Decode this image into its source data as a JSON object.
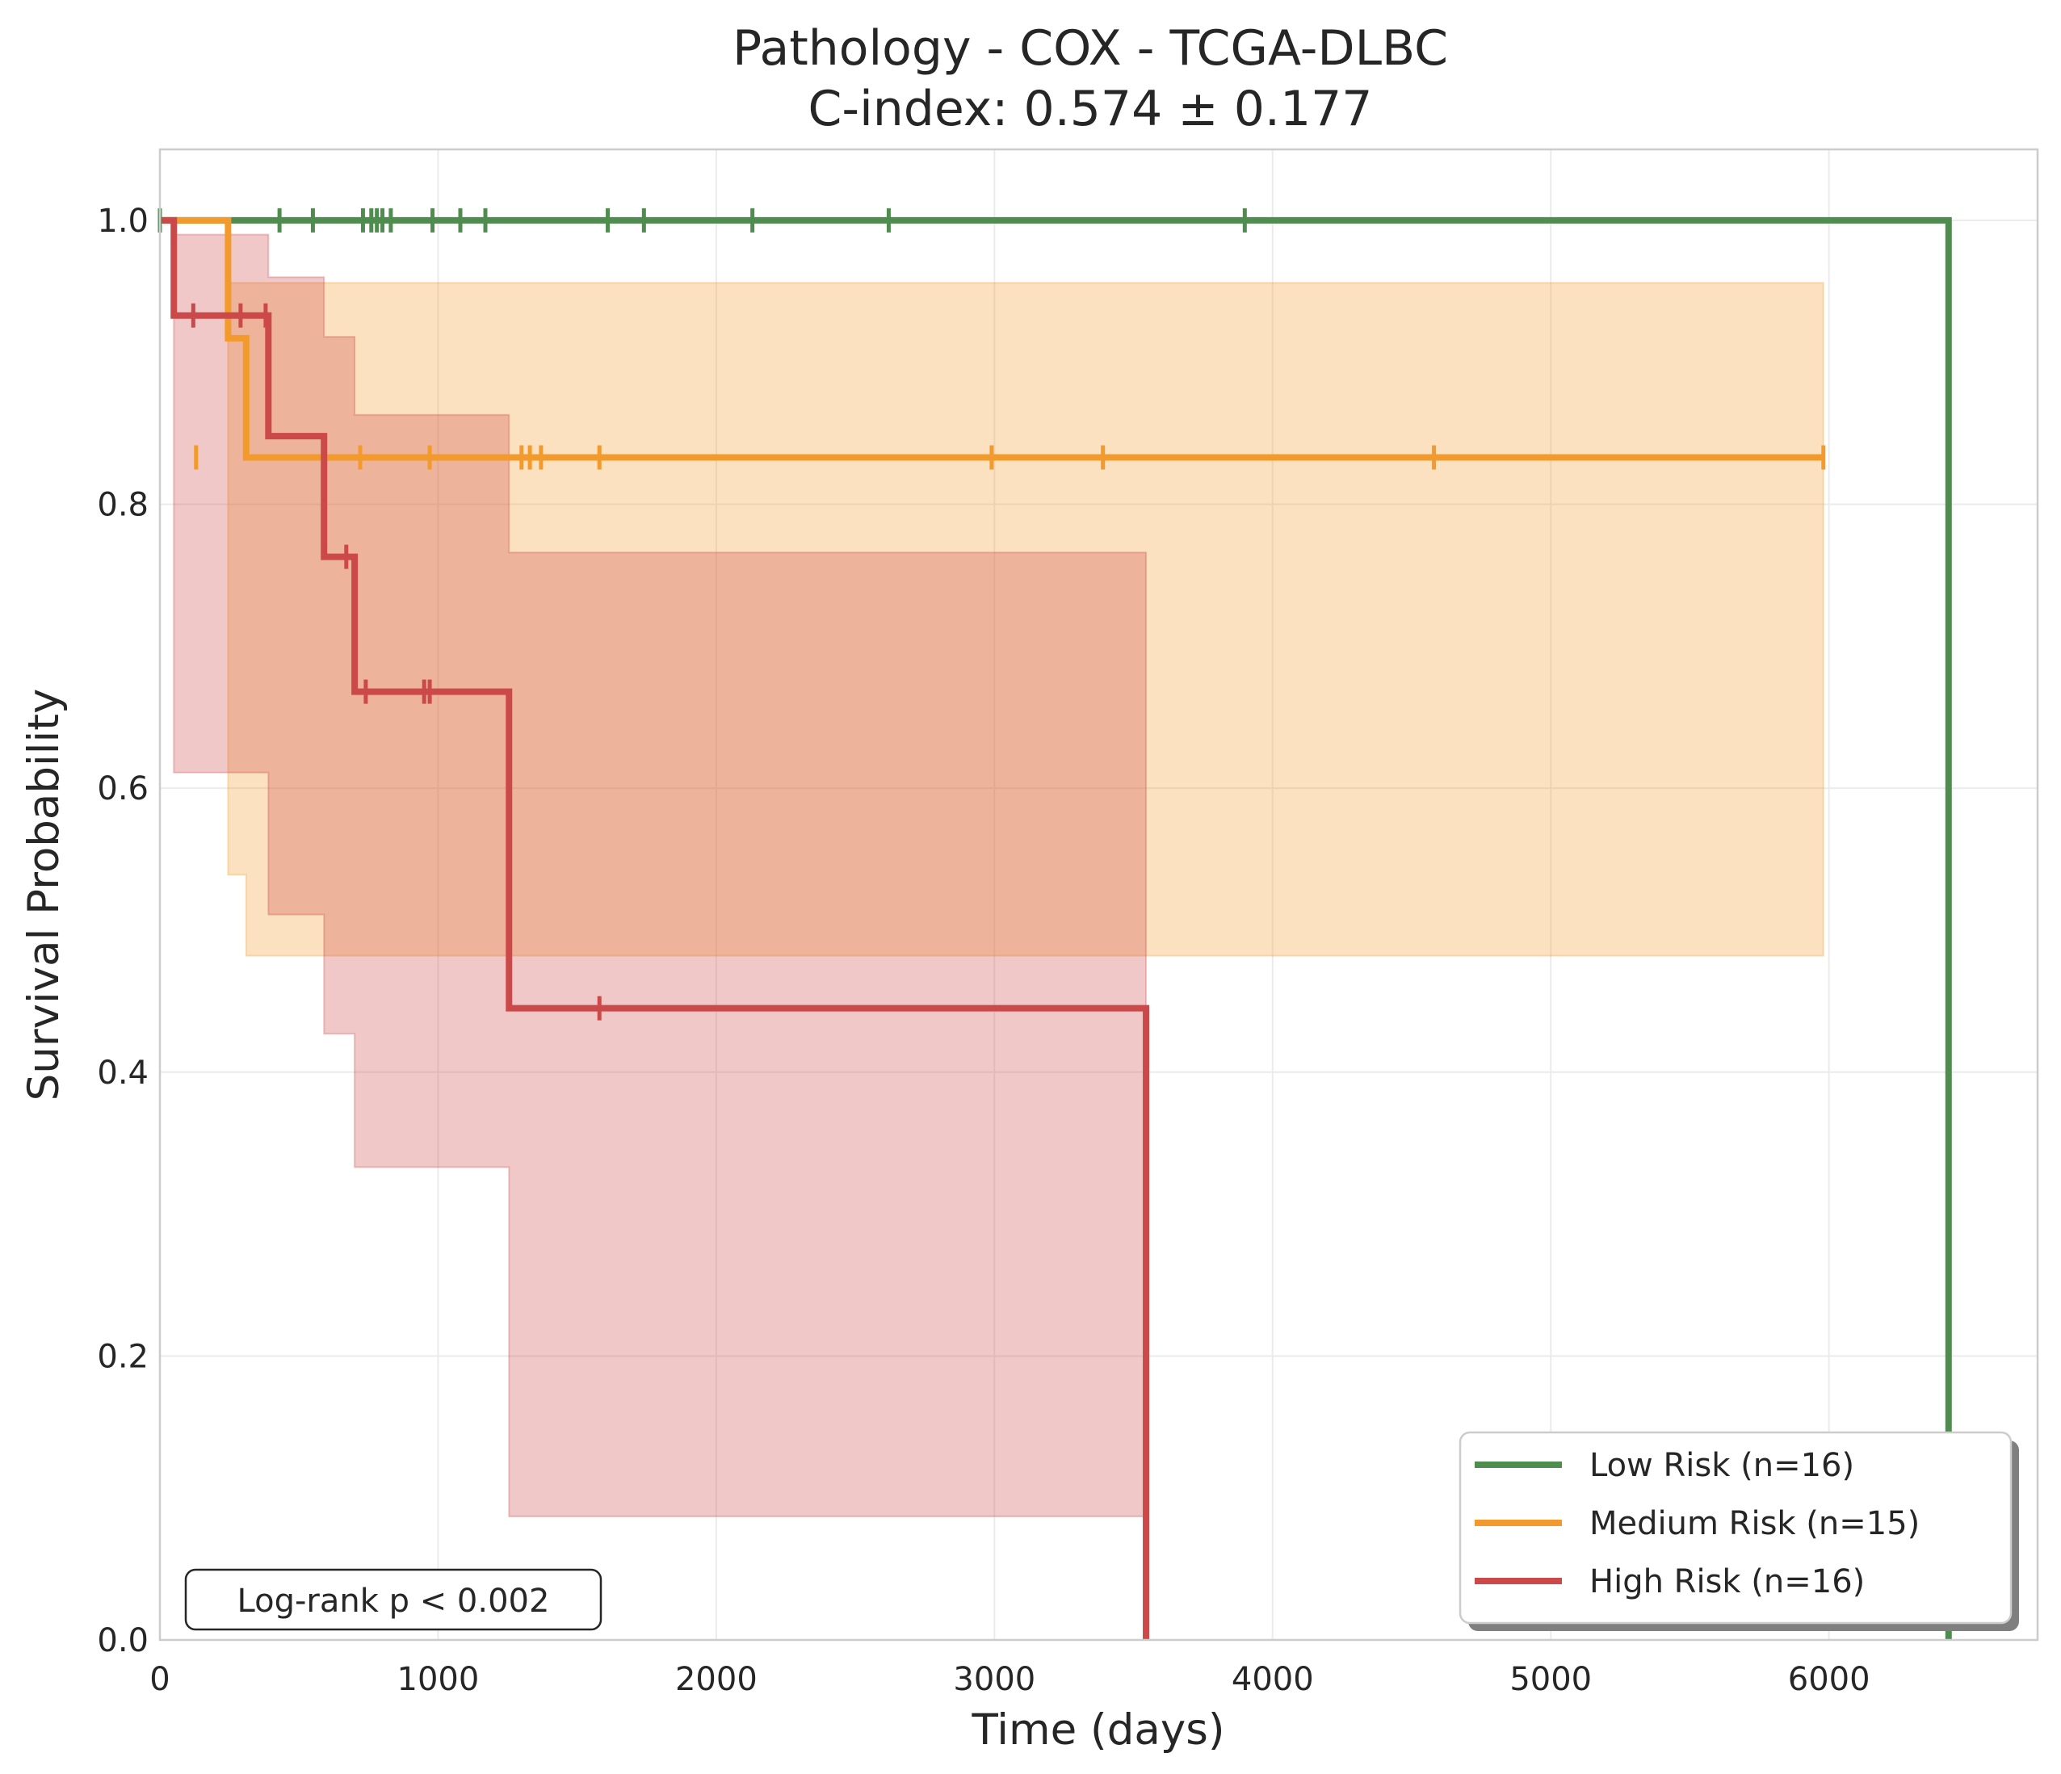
{
  "chart_data": {
    "type": "line",
    "subtype": "kaplan-meier",
    "title_line1": "Pathology - COX - TCGA-DLBC",
    "title_line2": "C-index: 0.574 ± 0.177",
    "xlabel": "Time (days)",
    "ylabel": "Survival Probability",
    "xlim": [
      0,
      6750
    ],
    "ylim": [
      0,
      1.05
    ],
    "x_ticks": [
      "0",
      "1000",
      "2000",
      "3000",
      "4000",
      "5000",
      "6000"
    ],
    "x_tick_values": [
      0,
      1000,
      2000,
      3000,
      4000,
      5000,
      6000
    ],
    "y_ticks": [
      "0.0",
      "0.2",
      "0.4",
      "0.6",
      "0.8",
      "1.0"
    ],
    "y_tick_values": [
      0,
      0.2,
      0.4,
      0.6,
      0.8,
      1.0
    ],
    "grid": true,
    "legend_position": "bottom-right",
    "annotation": "Log-rank p < 0.002",
    "series": [
      {
        "name": "Low Risk (n=16)",
        "color": "#4f8d4f",
        "steps": [
          [
            0,
            1.0
          ],
          [
            6430,
            1.0
          ],
          [
            6430,
            0.0
          ]
        ],
        "censor_x": [
          0,
          430,
          550,
          730,
          760,
          780,
          800,
          830,
          980,
          1080,
          1170,
          1610,
          1740,
          2130,
          2620,
          3900
        ],
        "censor_y": 1.0,
        "ci_upper": [],
        "ci_lower": []
      },
      {
        "name": "Medium Risk (n=15)",
        "color": "#f39a2c",
        "steps": [
          [
            0,
            1.0
          ],
          [
            245,
            1.0
          ],
          [
            245,
            0.917
          ],
          [
            310,
            0.917
          ],
          [
            310,
            0.833
          ],
          [
            5980,
            0.833
          ]
        ],
        "censor_x": [
          130,
          720,
          970,
          1300,
          1330,
          1370,
          1580,
          2990,
          3390,
          4580,
          5980
        ],
        "censor_y": 0.833,
        "ci_upper": [
          [
            0,
            1.0
          ],
          [
            245,
            1.0
          ],
          [
            245,
            0.956
          ],
          [
            5980,
            0.956
          ]
        ],
        "ci_lower": [
          [
            0,
            1.0
          ],
          [
            245,
            1.0
          ],
          [
            245,
            0.539
          ],
          [
            310,
            0.539
          ],
          [
            310,
            0.482
          ],
          [
            5980,
            0.482
          ]
        ]
      },
      {
        "name": "High Risk (n=16)",
        "color": "#cc4949",
        "steps": [
          [
            0,
            1.0
          ],
          [
            50,
            1.0
          ],
          [
            50,
            0.933
          ],
          [
            390,
            0.933
          ],
          [
            390,
            0.848
          ],
          [
            590,
            0.848
          ],
          [
            590,
            0.763
          ],
          [
            700,
            0.763
          ],
          [
            700,
            0.668
          ],
          [
            1255,
            0.668
          ],
          [
            1255,
            0.445
          ],
          [
            3545,
            0.445
          ],
          [
            3545,
            0.0
          ]
        ],
        "censor_x": [
          120,
          290,
          380,
          670,
          740,
          950,
          970,
          1580
        ],
        "censor_y_values": [
          0.933,
          0.933,
          0.933,
          0.763,
          0.668,
          0.668,
          0.668,
          0.445
        ],
        "ci_upper": [
          [
            0,
            1.0
          ],
          [
            50,
            1.0
          ],
          [
            50,
            0.99
          ],
          [
            390,
            0.99
          ],
          [
            390,
            0.96
          ],
          [
            590,
            0.96
          ],
          [
            590,
            0.918
          ],
          [
            700,
            0.918
          ],
          [
            700,
            0.863
          ],
          [
            1255,
            0.863
          ],
          [
            1255,
            0.766
          ],
          [
            3545,
            0.766
          ]
        ],
        "ci_lower": [
          [
            0,
            1.0
          ],
          [
            50,
            1.0
          ],
          [
            50,
            0.611
          ],
          [
            390,
            0.611
          ],
          [
            390,
            0.511
          ],
          [
            590,
            0.511
          ],
          [
            590,
            0.427
          ],
          [
            700,
            0.427
          ],
          [
            700,
            0.333
          ],
          [
            1255,
            0.333
          ],
          [
            1255,
            0.087
          ],
          [
            3545,
            0.087
          ]
        ]
      }
    ]
  }
}
